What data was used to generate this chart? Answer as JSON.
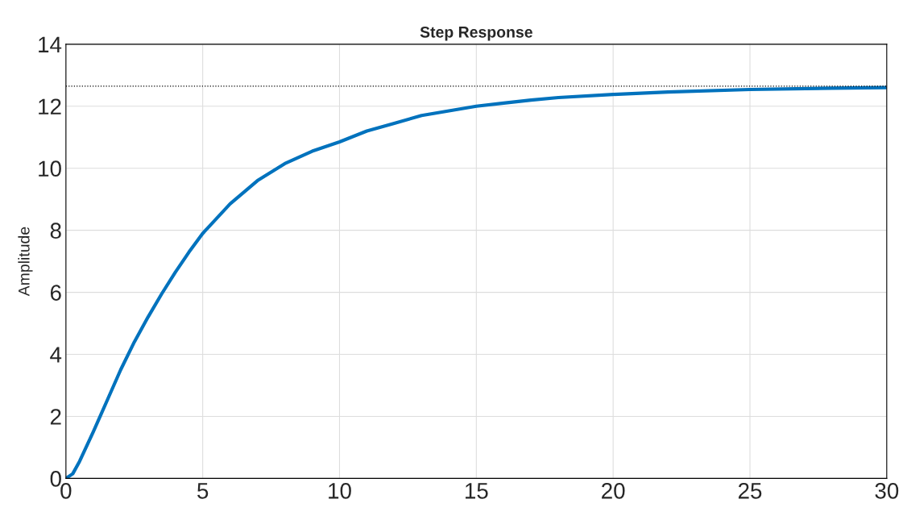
{
  "chart_data": {
    "type": "line",
    "title": "Step Response",
    "ylabel": "Amplitude",
    "x": [
      0,
      0.25,
      0.5,
      1,
      1.5,
      2,
      2.5,
      3,
      3.5,
      4,
      4.5,
      5,
      6,
      7,
      8,
      9,
      10,
      11,
      12,
      13,
      14,
      15,
      16,
      17,
      18,
      20,
      22,
      25,
      28,
      30
    ],
    "series": [
      {
        "color": "#0072bd",
        "values": [
          0,
          0.15,
          0.55,
          1.5,
          2.5,
          3.5,
          4.4,
          5.2,
          5.95,
          6.65,
          7.3,
          7.9,
          8.85,
          9.6,
          10.15,
          10.55,
          10.85,
          11.2,
          11.45,
          11.7,
          11.85,
          12.0,
          12.1,
          12.2,
          12.28,
          12.38,
          12.46,
          12.54,
          12.58,
          12.6
        ]
      }
    ],
    "xlim": [
      0,
      30
    ],
    "ylim": [
      0,
      14
    ],
    "xticks": [
      0,
      5,
      10,
      15,
      20,
      25,
      30
    ],
    "yticks": [
      0,
      2,
      4,
      6,
      8,
      10,
      12,
      14
    ],
    "ref_lines": [
      {
        "axis": "y",
        "value": 12.65,
        "color": "#000000",
        "line_style": "dotted"
      }
    ],
    "grid": true,
    "legend": false,
    "marker": "none",
    "line_style": "solid"
  }
}
